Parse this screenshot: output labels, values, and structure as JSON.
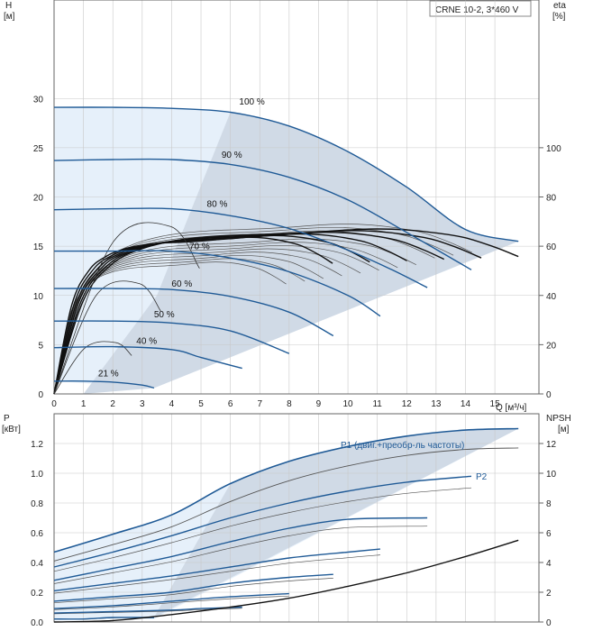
{
  "chart_data": [
    {
      "type": "line",
      "title_box": "CRNE 10-2, 3*460 V",
      "ylabel": "H",
      "ylabel_unit": "[м]",
      "y2label": "eta",
      "y2label_unit": "[%]",
      "xlabel": "Q [м³/ч]",
      "xlim": [
        0,
        16.5
      ],
      "ylim": [
        0,
        40
      ],
      "y2lim": [
        0,
        160
      ],
      "x_ticks": [
        0,
        1,
        2,
        3,
        4,
        5,
        6,
        7,
        8,
        9,
        10,
        11,
        12,
        13,
        14,
        15
      ],
      "x_tick_labels": [
        "0",
        "1",
        "2",
        "3",
        "4",
        "5",
        "6",
        "7",
        "8",
        "9",
        "10",
        "11",
        "12",
        "13",
        "14",
        "15"
      ],
      "y_ticks": [
        0,
        5,
        10,
        15,
        20,
        25,
        30
      ],
      "y_tick_labels": [
        "0",
        "5",
        "10",
        "15",
        "20",
        "25",
        "30"
      ],
      "y2_ticks": [
        0,
        20,
        40,
        60,
        80,
        100
      ],
      "y2_tick_labels": [
        "0",
        "20",
        "40",
        "60",
        "80",
        "100"
      ],
      "grid": true,
      "speed_curves": [
        {
          "label": "100 %",
          "x": [
            0,
            2,
            4,
            6,
            8,
            10,
            12,
            14,
            15.8
          ],
          "y": [
            29.1,
            29.1,
            29.0,
            28.6,
            27.2,
            24.6,
            21.0,
            16.7,
            15.5
          ]
        },
        {
          "label": "90 %",
          "x": [
            0,
            2,
            4,
            6,
            8,
            10,
            12,
            14.2
          ],
          "y": [
            23.7,
            23.8,
            23.8,
            23.3,
            22.0,
            19.7,
            16.4,
            12.6
          ]
        },
        {
          "label": "80 %",
          "x": [
            0,
            2,
            4,
            6,
            8,
            10,
            11.5,
            12.7
          ],
          "y": [
            18.7,
            18.8,
            18.8,
            18.1,
            16.8,
            14.6,
            12.6,
            10.8
          ]
        },
        {
          "label": "70 %",
          "x": [
            0,
            2,
            4,
            6,
            8,
            10,
            11.1
          ],
          "y": [
            14.5,
            14.5,
            14.5,
            13.8,
            12.4,
            10.0,
            7.9
          ]
        },
        {
          "label": "60 %",
          "x": [
            0,
            2,
            4,
            6,
            8,
            9.5
          ],
          "y": [
            10.7,
            10.7,
            10.6,
            9.9,
            8.3,
            5.9
          ]
        },
        {
          "label": "50 %",
          "x": [
            0,
            2,
            4,
            6,
            8
          ],
          "y": [
            7.4,
            7.4,
            7.2,
            6.4,
            4.1
          ]
        },
        {
          "label": "40 %",
          "x": [
            0,
            2,
            4,
            5,
            6.4
          ],
          "y": [
            4.7,
            4.8,
            4.5,
            3.7,
            2.6
          ]
        },
        {
          "label": "21 %",
          "x": [
            0,
            1,
            2,
            3,
            3.4
          ],
          "y": [
            1.3,
            1.3,
            1.2,
            0.9,
            0.6
          ]
        }
      ],
      "eta_curves": [
        {
          "x": [
            0,
            1,
            2,
            3,
            4,
            5,
            6,
            7,
            8,
            9,
            10,
            11,
            12,
            13,
            14,
            15,
            15.8
          ],
          "eta": [
            0,
            38,
            53,
            59,
            62,
            63.6,
            64.4,
            64.8,
            65.2,
            65.8,
            66.6,
            67.0,
            66.6,
            65.4,
            63.4,
            59.6,
            55.8
          ]
        }
      ],
      "annotations": [
        "100 %",
        "90 %",
        "80 %",
        "70 %",
        "60 %",
        "50 %",
        "40 %",
        "21 %"
      ]
    },
    {
      "type": "line",
      "ylabel": "P",
      "ylabel_unit": "[кВт]",
      "y2label": "NPSH",
      "y2label_unit": "[м]",
      "xlim": [
        0,
        16.5
      ],
      "ylim": [
        0,
        1.4
      ],
      "y2lim": [
        0,
        14
      ],
      "y_ticks": [
        0,
        0.2,
        0.4,
        0.6,
        0.8,
        1.0,
        1.2
      ],
      "y_tick_labels": [
        "0.0",
        "0.2",
        "0.4",
        "0.6",
        "0.8",
        "1.0",
        "1.2"
      ],
      "y2_ticks": [
        0,
        2,
        4,
        6,
        8,
        10,
        12
      ],
      "y2_tick_labels": [
        "0",
        "2",
        "4",
        "6",
        "8",
        "10",
        "12"
      ],
      "grid": true,
      "series": [
        {
          "name": "P1 (двиг.+преобр-ль частоты)",
          "x": [
            0,
            2,
            4,
            6,
            8,
            10,
            12,
            14,
            15.8
          ],
          "y": [
            0.47,
            0.59,
            0.72,
            0.93,
            1.08,
            1.18,
            1.25,
            1.29,
            1.3
          ]
        },
        {
          "name": "P2",
          "x": [
            0,
            2,
            4,
            6,
            8,
            10,
            12,
            14,
            15.8
          ],
          "y": [
            0.41,
            0.52,
            0.64,
            0.81,
            0.95,
            1.05,
            1.12,
            1.16,
            1.17
          ]
        }
      ],
      "p1_family": [
        {
          "x": [
            0,
            2,
            4,
            6,
            8,
            10,
            12,
            14.2
          ],
          "y": [
            0.37,
            0.47,
            0.58,
            0.7,
            0.8,
            0.88,
            0.94,
            0.98
          ]
        },
        {
          "x": [
            0,
            2,
            4,
            6,
            8,
            10,
            12.7
          ],
          "y": [
            0.28,
            0.36,
            0.44,
            0.54,
            0.63,
            0.69,
            0.7
          ]
        },
        {
          "x": [
            0,
            2,
            4,
            6,
            8,
            10,
            11.1
          ],
          "y": [
            0.21,
            0.26,
            0.31,
            0.37,
            0.43,
            0.47,
            0.49
          ]
        },
        {
          "x": [
            0,
            2,
            4,
            6,
            8,
            9.5
          ],
          "y": [
            0.14,
            0.17,
            0.2,
            0.26,
            0.3,
            0.32
          ]
        },
        {
          "x": [
            0,
            2,
            4,
            6,
            8
          ],
          "y": [
            0.09,
            0.11,
            0.14,
            0.17,
            0.19
          ]
        },
        {
          "x": [
            0,
            2,
            4,
            5,
            6.4
          ],
          "y": [
            0.06,
            0.07,
            0.08,
            0.09,
            0.1
          ]
        },
        {
          "x": [
            0,
            1,
            2,
            3,
            3.4
          ],
          "y": [
            0.02,
            0.02,
            0.03,
            0.03,
            0.03
          ]
        }
      ],
      "npsh_curve": {
        "x": [
          0,
          2,
          4,
          6,
          8,
          10,
          12,
          14,
          15.8
        ],
        "npsh": [
          0,
          0.1,
          0.5,
          1.0,
          1.6,
          2.4,
          3.3,
          4.4,
          5.5
        ]
      }
    }
  ]
}
